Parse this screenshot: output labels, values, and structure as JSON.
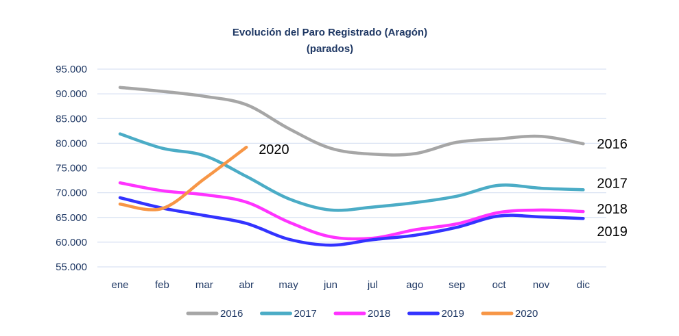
{
  "chart_data": {
    "type": "line",
    "title": "Evolución del Paro Registrado (Aragón)",
    "subtitle": "(parados)",
    "xlabel": "",
    "ylabel": "",
    "categories": [
      "ene",
      "feb",
      "mar",
      "abr",
      "may",
      "jun",
      "jul",
      "ago",
      "sep",
      "oct",
      "nov",
      "dic"
    ],
    "ylim": [
      55000,
      95000
    ],
    "yticks": [
      55000,
      60000,
      65000,
      70000,
      75000,
      80000,
      85000,
      90000,
      95000
    ],
    "ytick_labels": [
      "55.000",
      "60.000",
      "65.000",
      "70.000",
      "75.000",
      "80.000",
      "85.000",
      "90.000",
      "95.000"
    ],
    "grid": true,
    "legend_position": "bottom",
    "series": [
      {
        "name": "2016",
        "color": "#a6a6a6",
        "end_label": "2016",
        "values": [
          91300,
          90500,
          89500,
          87800,
          83000,
          79000,
          77800,
          77900,
          80200,
          80900,
          81400,
          79900
        ]
      },
      {
        "name": "2017",
        "color": "#4bacc6",
        "end_label": "2017",
        "values": [
          81900,
          79000,
          77500,
          73300,
          68800,
          66500,
          67100,
          68000,
          69300,
          71500,
          70900,
          70600
        ]
      },
      {
        "name": "2018",
        "color": "#ff33ff",
        "end_label": "2018",
        "values": [
          72000,
          70400,
          69600,
          68100,
          64100,
          61100,
          60800,
          62500,
          63700,
          66000,
          66500,
          66200
        ]
      },
      {
        "name": "2019",
        "color": "#3333ff",
        "end_label": "2019",
        "values": [
          69000,
          66900,
          65400,
          63800,
          60600,
          59400,
          60500,
          61400,
          63000,
          65300,
          65100,
          64800
        ]
      },
      {
        "name": "2020",
        "color": "#f79646",
        "end_label": "2020",
        "values": [
          67700,
          66800,
          72800,
          79200,
          null,
          null,
          null,
          null,
          null,
          null,
          null,
          null
        ]
      }
    ]
  }
}
